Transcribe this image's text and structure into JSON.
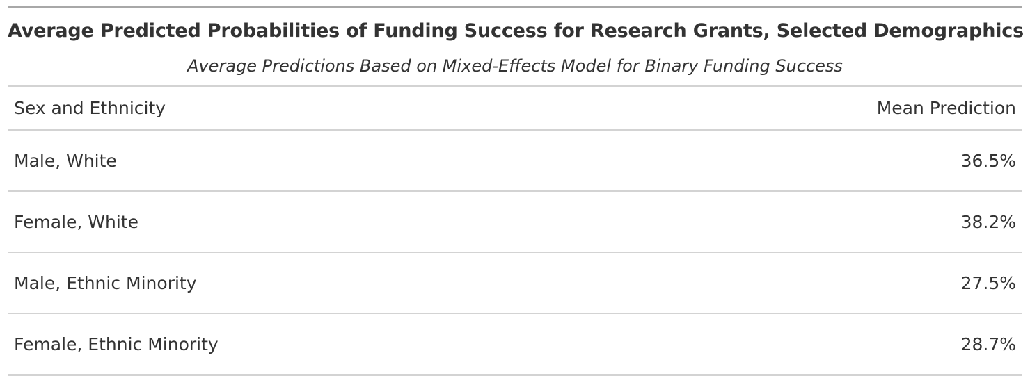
{
  "table": {
    "title": "Average Predicted Probabilities of Funding Success for Research Grants, Selected Demographics",
    "subtitle": "Average Predictions Based on Mixed-Effects Model for Binary Funding Success",
    "columns": [
      "Sex and Ethnicity",
      "Mean Prediction"
    ],
    "rows": [
      {
        "group": "Male, White",
        "mean": "36.5%"
      },
      {
        "group": "Female, White",
        "mean": "38.2%"
      },
      {
        "group": "Male, Ethnic Minority",
        "mean": "27.5%"
      },
      {
        "group": "Female, Ethnic Minority",
        "mean": "28.7%"
      }
    ]
  },
  "colors": {
    "text": "#333333",
    "rule_top": "#a8a8a8",
    "rule": "#d3d3d3"
  }
}
